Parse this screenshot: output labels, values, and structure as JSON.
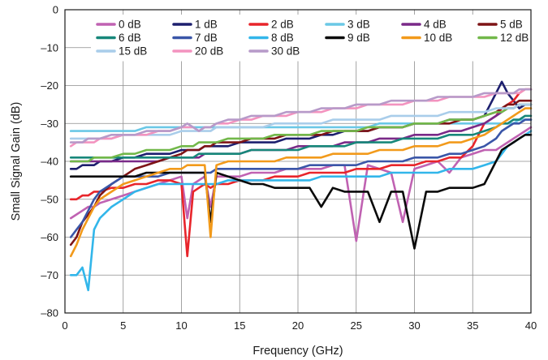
{
  "chart_data": {
    "type": "line",
    "xlabel": "Frequency (GHz)",
    "ylabel": "Small Signal Gain (dB)",
    "xlim": [
      0,
      40
    ],
    "ylim": [
      -80,
      0
    ],
    "xticks": [
      "0",
      "5",
      "10",
      "15",
      "20",
      "25",
      "30",
      "35",
      "40"
    ],
    "yticks": [
      "0",
      "–10",
      "–20",
      "–30",
      "–40",
      "–50",
      "–60",
      "–70",
      "–80"
    ],
    "grid": true,
    "legend_position": "top",
    "x": [
      0.5,
      1,
      1.5,
      2,
      2.5,
      3,
      4,
      5,
      6,
      7,
      8,
      9,
      10,
      10.5,
      11,
      11.5,
      12,
      12.5,
      13,
      14,
      15,
      16,
      17,
      18,
      19,
      20,
      21,
      22,
      23,
      24,
      25,
      26,
      27,
      28,
      29,
      30,
      31,
      32,
      33,
      34,
      35,
      36,
      37,
      37.5,
      38,
      38.5,
      39,
      39.5,
      40
    ],
    "series": [
      {
        "name": "0 dB",
        "color": "#c062b2",
        "values": [
          -55,
          -54,
          -53,
          -52,
          -52,
          -51,
          -50,
          -49,
          -48,
          -47,
          -46,
          -45,
          -44,
          -55,
          -46,
          -45,
          -44,
          -52,
          -44,
          -44,
          -44,
          -43,
          -43,
          -43,
          -42,
          -42,
          -42,
          -42,
          -41,
          -41,
          -61,
          -41,
          -42,
          -43,
          -56,
          -42,
          -41,
          -40,
          -43,
          -39,
          -38,
          -37,
          -37,
          -36,
          -35,
          -34,
          -33,
          -32,
          -31
        ]
      },
      {
        "name": "1 dB",
        "color": "#1d1f6e",
        "values": [
          -42,
          -42,
          -41,
          -41,
          -41,
          -40,
          -40,
          -39,
          -39,
          -38,
          -38,
          -38,
          -37,
          -37,
          -37,
          -37,
          -36,
          -36,
          -36,
          -36,
          -35,
          -35,
          -35,
          -35,
          -34,
          -34,
          -34,
          -33,
          -33,
          -32,
          -32,
          -32,
          -31,
          -31,
          -31,
          -30,
          -30,
          -30,
          -29,
          -29,
          -29,
          -28,
          -22,
          -19,
          -22,
          -24,
          -26,
          -25,
          -25
        ]
      },
      {
        "name": "2 dB",
        "color": "#e8252b",
        "values": [
          -50,
          -50,
          -49,
          -49,
          -48,
          -48,
          -47,
          -47,
          -46,
          -46,
          -45,
          -45,
          -46,
          -65,
          -48,
          -47,
          -46,
          -47,
          -46,
          -46,
          -45,
          -45,
          -45,
          -44,
          -44,
          -44,
          -43,
          -43,
          -43,
          -43,
          -42,
          -42,
          -42,
          -41,
          -41,
          -41,
          -40,
          -40,
          -39,
          -39,
          -36,
          -30,
          -28,
          -26,
          -25,
          -24,
          -22,
          -21,
          -21
        ]
      },
      {
        "name": "3 dB",
        "color": "#6bc8e6",
        "values": [
          -32,
          -32,
          -32,
          -32,
          -32,
          -32,
          -32,
          -32,
          -32,
          -31,
          -31,
          -31,
          -31,
          -31,
          -31,
          -31,
          -31,
          -31,
          -31,
          -31,
          -31,
          -31,
          -31,
          -31,
          -31,
          -31,
          -31,
          -31,
          -31,
          -31,
          -31,
          -31,
          -30,
          -30,
          -30,
          -30,
          -30,
          -30,
          -30,
          -30,
          -30,
          -30,
          -30,
          -30,
          -30,
          -30,
          -29,
          -29,
          -29
        ]
      },
      {
        "name": "4 dB",
        "color": "#7a2a88",
        "values": [
          -40,
          -40,
          -40,
          -40,
          -40,
          -40,
          -40,
          -40,
          -40,
          -40,
          -40,
          -39,
          -39,
          -39,
          -39,
          -39,
          -38,
          -38,
          -38,
          -38,
          -38,
          -37,
          -37,
          -37,
          -37,
          -36,
          -36,
          -36,
          -36,
          -35,
          -35,
          -35,
          -34,
          -34,
          -34,
          -33,
          -33,
          -33,
          -32,
          -32,
          -31,
          -30,
          -28,
          -27,
          -26,
          -26,
          -25,
          -25,
          -25
        ]
      },
      {
        "name": "5 dB",
        "color": "#7e1416",
        "values": [
          -62,
          -60,
          -56,
          -54,
          -52,
          -49,
          -46,
          -44,
          -42,
          -41,
          -40,
          -39,
          -38,
          -37,
          -37,
          -37,
          -36,
          -36,
          -35,
          -35,
          -35,
          -34,
          -34,
          -34,
          -33,
          -33,
          -33,
          -33,
          -32,
          -32,
          -32,
          -32,
          -31,
          -31,
          -31,
          -30,
          -30,
          -30,
          -30,
          -29,
          -29,
          -28,
          -27,
          -26,
          -25,
          -25,
          -24,
          -24,
          -24
        ]
      },
      {
        "name": "6 dB",
        "color": "#17877a",
        "values": [
          -39,
          -39,
          -39,
          -39,
          -39,
          -39,
          -39,
          -39,
          -39,
          -39,
          -39,
          -39,
          -39,
          -39,
          -39,
          -38,
          -38,
          -38,
          -38,
          -38,
          -38,
          -37,
          -37,
          -37,
          -37,
          -37,
          -36,
          -36,
          -36,
          -36,
          -35,
          -35,
          -35,
          -35,
          -34,
          -34,
          -34,
          -34,
          -33,
          -33,
          -33,
          -32,
          -31,
          -30,
          -30,
          -29,
          -29,
          -28,
          -28
        ]
      },
      {
        "name": "7 dB",
        "color": "#3a56a8",
        "values": [
          -60,
          -58,
          -56,
          -53,
          -50,
          -48,
          -46,
          -44,
          -44,
          -44,
          -44,
          -43,
          -43,
          -43,
          -43,
          -43,
          -43,
          -43,
          -42,
          -42,
          -42,
          -42,
          -42,
          -42,
          -42,
          -42,
          -41,
          -41,
          -41,
          -41,
          -41,
          -40,
          -40,
          -40,
          -40,
          -39,
          -39,
          -39,
          -38,
          -38,
          -37,
          -36,
          -34,
          -32,
          -31,
          -30,
          -30,
          -29,
          -29
        ]
      },
      {
        "name": "8 dB",
        "color": "#32b6ea",
        "values": [
          -70,
          -70,
          -68,
          -74,
          -58,
          -55,
          -52,
          -50,
          -48,
          -47,
          -46,
          -46,
          -46,
          -46,
          -46,
          -46,
          -46,
          -46,
          -46,
          -45,
          -45,
          -45,
          -45,
          -45,
          -45,
          -45,
          -45,
          -44,
          -44,
          -44,
          -44,
          -44,
          -44,
          -43,
          -43,
          -43,
          -43,
          -43,
          -42,
          -42,
          -42,
          -41,
          -40,
          -38,
          -36,
          -35,
          -34,
          -33,
          -32
        ]
      },
      {
        "name": "9 dB",
        "color": "#0a0a0a",
        "values": [
          -44,
          -44,
          -44,
          -44,
          -44,
          -44,
          -44,
          -44,
          -44,
          -43,
          -43,
          -43,
          -43,
          -43,
          -43,
          -43,
          -43,
          -56,
          -43,
          -44,
          -45,
          -46,
          -46,
          -47,
          -47,
          -47,
          -47,
          -52,
          -47,
          -48,
          -48,
          -48,
          -56,
          -48,
          -48,
          -63,
          -48,
          -48,
          -47,
          -47,
          -47,
          -46,
          -40,
          -37,
          -36,
          -35,
          -34,
          -33,
          -33
        ]
      },
      {
        "name": "10 dB",
        "color": "#f29a1b",
        "values": [
          -65,
          -62,
          -58,
          -55,
          -52,
          -50,
          -48,
          -46,
          -45,
          -44,
          -43,
          -42,
          -42,
          -41,
          -41,
          -41,
          -41,
          -60,
          -41,
          -40,
          -40,
          -40,
          -40,
          -40,
          -39,
          -39,
          -39,
          -39,
          -38,
          -38,
          -38,
          -38,
          -37,
          -37,
          -37,
          -36,
          -36,
          -36,
          -35,
          -35,
          -34,
          -33,
          -31,
          -30,
          -29,
          -28,
          -27,
          -26,
          -26
        ]
      },
      {
        "name": "12 dB",
        "color": "#72b84a",
        "values": [
          -40,
          -40,
          -40,
          -40,
          -39,
          -39,
          -39,
          -38,
          -38,
          -37,
          -37,
          -37,
          -36,
          -36,
          -36,
          -35,
          -35,
          -35,
          -35,
          -34,
          -34,
          -34,
          -34,
          -33,
          -33,
          -33,
          -33,
          -32,
          -32,
          -32,
          -32,
          -31,
          -31,
          -31,
          -31,
          -30,
          -30,
          -30,
          -29,
          -29,
          -29,
          -28,
          -27,
          -27,
          -26,
          -26,
          -25,
          -25,
          -25
        ]
      },
      {
        "name": "15 dB",
        "color": "#a9cdea",
        "values": [
          -34,
          -34,
          -34,
          -34,
          -34,
          -34,
          -34,
          -33,
          -33,
          -33,
          -33,
          -33,
          -32,
          -32,
          -32,
          -32,
          -32,
          -32,
          -31,
          -31,
          -31,
          -31,
          -31,
          -30,
          -30,
          -30,
          -30,
          -30,
          -29,
          -29,
          -29,
          -29,
          -29,
          -28,
          -28,
          -28,
          -28,
          -28,
          -27,
          -27,
          -27,
          -27,
          -26,
          -26,
          -26,
          -26,
          -25,
          -25,
          -25
        ]
      },
      {
        "name": "20 dB",
        "color": "#f393bf",
        "values": [
          -36,
          -35,
          -35,
          -35,
          -35,
          -34,
          -34,
          -33,
          -33,
          -33,
          -32,
          -32,
          -31,
          -31,
          -31,
          -32,
          -31,
          -31,
          -30,
          -30,
          -29,
          -29,
          -28,
          -28,
          -28,
          -27,
          -27,
          -27,
          -26,
          -26,
          -26,
          -25,
          -25,
          -25,
          -25,
          -24,
          -24,
          -24,
          -23,
          -23,
          -23,
          -23,
          -22,
          -22,
          -22,
          -22,
          -22,
          -21,
          -21
        ]
      },
      {
        "name": "30 dB",
        "color": "#b79ac9",
        "values": [
          -35,
          -35,
          -35,
          -34,
          -34,
          -34,
          -33,
          -33,
          -33,
          -32,
          -32,
          -32,
          -31,
          -30,
          -31,
          -32,
          -31,
          -31,
          -30,
          -29,
          -29,
          -28,
          -28,
          -28,
          -27,
          -27,
          -27,
          -26,
          -26,
          -26,
          -25,
          -25,
          -25,
          -24,
          -24,
          -24,
          -24,
          -23,
          -23,
          -23,
          -23,
          -22,
          -22,
          -22,
          -22,
          -22,
          -21,
          -21,
          -21
        ]
      }
    ]
  }
}
